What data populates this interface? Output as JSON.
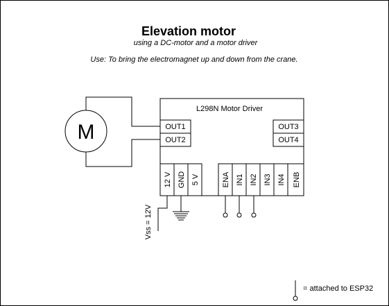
{
  "title": "Elevation motor",
  "subtitle": "using a DC-motor and a motor driver",
  "use_note": "Use: To bring the electromagnet up and down from the crane.",
  "motor": {
    "symbol": "M"
  },
  "driver": {
    "name": "L298N Motor Driver",
    "outputs_left": [
      "OUT1",
      "OUT2"
    ],
    "outputs_right": [
      "OUT3",
      "OUT4"
    ],
    "power_pins": [
      "12 V",
      "GND",
      "5 V"
    ],
    "control_pins": [
      "ENA",
      "IN1",
      "IN2",
      "IN3",
      "IN4",
      "ENB"
    ]
  },
  "supply_label": "Vss = 12V",
  "legend": {
    "text": "= attached to ESP32"
  },
  "colors": {
    "stroke": "#000000",
    "background": "#ffffff",
    "frame": "#000000"
  }
}
